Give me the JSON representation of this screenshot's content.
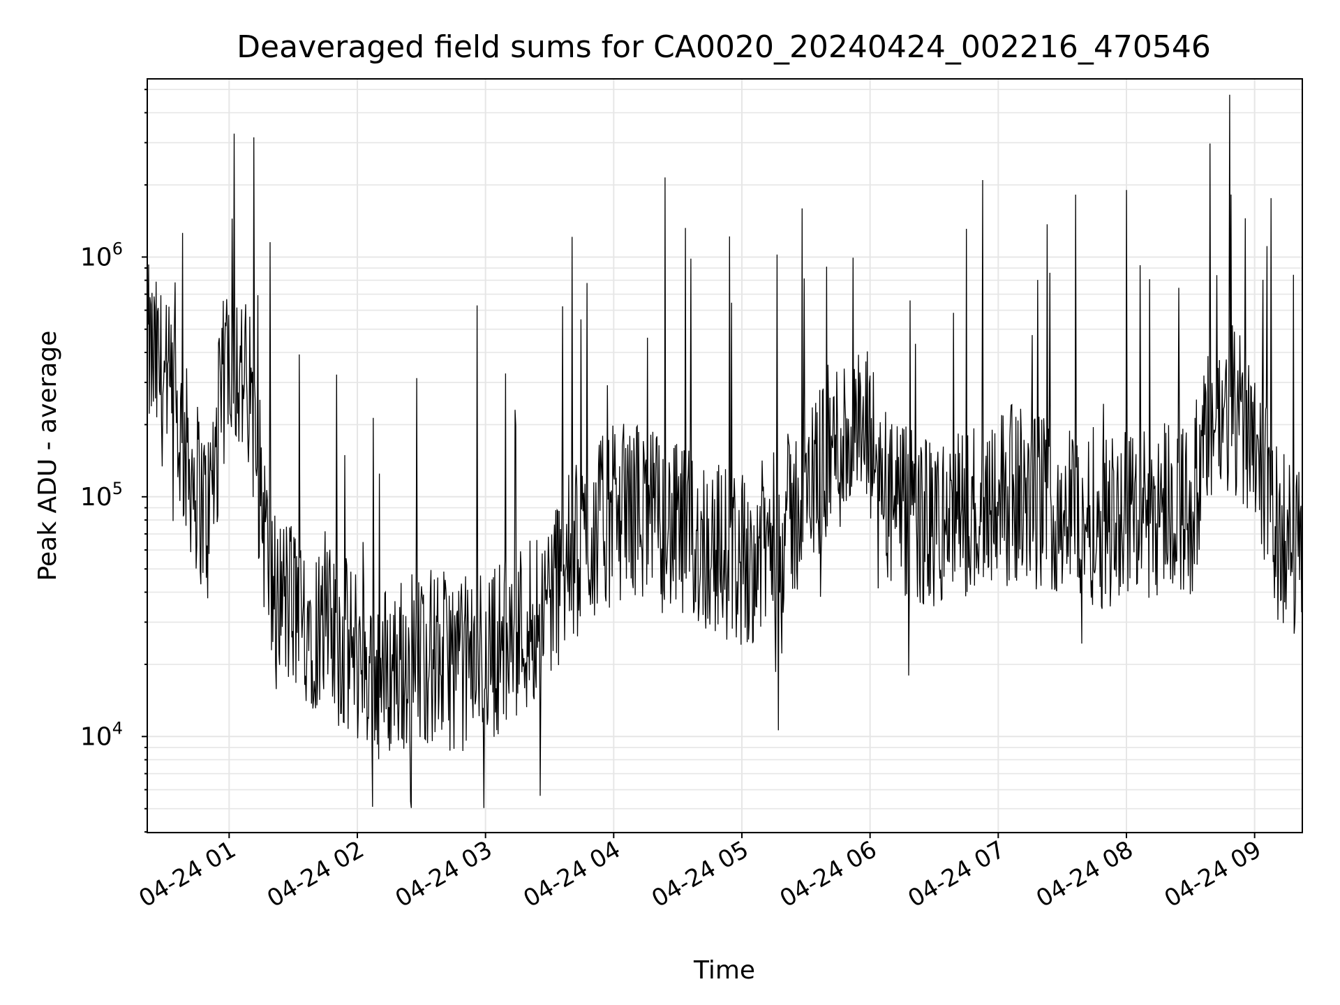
{
  "chart_data": {
    "type": "line",
    "title": "Deaveraged field sums for CA0020_20240424_002216_470546",
    "xlabel": "Time",
    "ylabel": "Peak ADU - average",
    "yscale": "log",
    "ylim": [
      4000,
      5500000
    ],
    "xlim": [
      "2024-04-24 00:22",
      "2024-04-24 09:22"
    ],
    "grid": true,
    "line_color": "#000000",
    "x_ticks": [
      {
        "t": "2024-04-24 01:00",
        "label": "04-24 01"
      },
      {
        "t": "2024-04-24 02:00",
        "label": "04-24 02"
      },
      {
        "t": "2024-04-24 03:00",
        "label": "04-24 03"
      },
      {
        "t": "2024-04-24 04:00",
        "label": "04-24 04"
      },
      {
        "t": "2024-04-24 05:00",
        "label": "04-24 05"
      },
      {
        "t": "2024-04-24 06:00",
        "label": "04-24 06"
      },
      {
        "t": "2024-04-24 07:00",
        "label": "04-24 07"
      },
      {
        "t": "2024-04-24 08:00",
        "label": "04-24 08"
      },
      {
        "t": "2024-04-24 09:00",
        "label": "04-24 09"
      }
    ],
    "y_ticks": [
      {
        "value": 10000,
        "base": "10",
        "exp": "4"
      },
      {
        "value": 100000,
        "base": "10",
        "exp": "5"
      },
      {
        "value": 1000000,
        "base": "10",
        "exp": "6"
      }
    ],
    "series": [
      {
        "x": [
          "2024-04-24 00:22",
          "2024-04-24 00:30",
          "2024-04-24 00:40",
          "2024-04-24 00:50",
          "2024-04-24 01:00",
          "2024-04-24 01:10",
          "2024-04-24 01:20",
          "2024-04-24 01:30",
          "2024-04-24 01:40",
          "2024-04-24 01:50",
          "2024-04-24 02:00",
          "2024-04-24 02:10",
          "2024-04-24 02:20",
          "2024-04-24 02:30",
          "2024-04-24 02:40",
          "2024-04-24 02:50",
          "2024-04-24 03:00",
          "2024-04-24 03:10",
          "2024-04-24 03:20",
          "2024-04-24 03:30",
          "2024-04-24 03:40",
          "2024-04-24 03:50",
          "2024-04-24 04:00",
          "2024-04-24 04:10",
          "2024-04-24 04:20",
          "2024-04-24 04:30",
          "2024-04-24 04:40",
          "2024-04-24 04:50",
          "2024-04-24 05:00",
          "2024-04-24 05:10",
          "2024-04-24 05:20",
          "2024-04-24 05:30",
          "2024-04-24 05:40",
          "2024-04-24 05:50",
          "2024-04-24 06:00",
          "2024-04-24 06:10",
          "2024-04-24 06:20",
          "2024-04-24 06:30",
          "2024-04-24 06:40",
          "2024-04-24 06:50",
          "2024-04-24 07:00",
          "2024-04-24 07:10",
          "2024-04-24 07:20",
          "2024-04-24 07:30",
          "2024-04-24 07:40",
          "2024-04-24 07:50",
          "2024-04-24 08:00",
          "2024-04-24 08:10",
          "2024-04-24 08:20",
          "2024-04-24 08:30",
          "2024-04-24 08:40",
          "2024-04-24 08:50",
          "2024-04-24 09:00",
          "2024-04-24 09:10",
          "2024-04-24 09:22"
        ],
        "y": [
          400000,
          300000,
          150000,
          80000,
          450000,
          250000,
          40000,
          35000,
          30000,
          25000,
          22000,
          18000,
          20000,
          22000,
          21000,
          20000,
          22000,
          25000,
          30000,
          40000,
          55000,
          70000,
          85000,
          90000,
          80000,
          70000,
          65000,
          60000,
          55000,
          60000,
          75000,
          100000,
          150000,
          180000,
          170000,
          90000,
          80000,
          75000,
          80000,
          90000,
          110000,
          100000,
          95000,
          90000,
          85000,
          80000,
          90000,
          85000,
          100000,
          85000,
          200000,
          220000,
          200000,
          70000,
          60000
        ]
      }
    ]
  }
}
